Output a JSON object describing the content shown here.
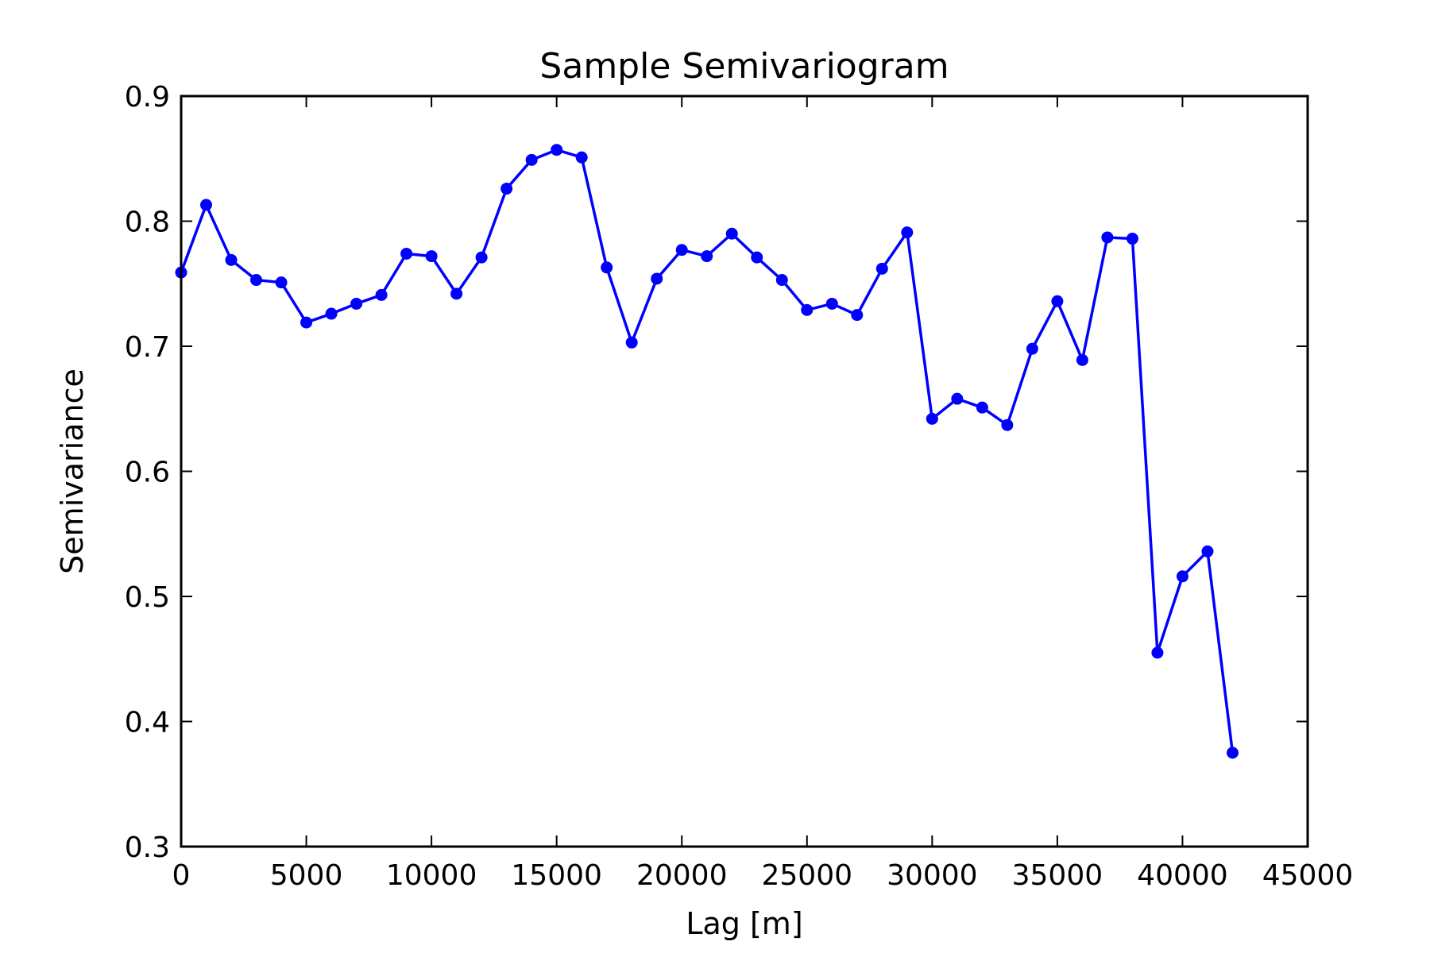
{
  "chart_data": {
    "type": "line",
    "title": "Sample Semivariogram",
    "xlabel": "Lag [m]",
    "ylabel": "Semivariance",
    "xlim": [
      0,
      45000
    ],
    "ylim": [
      0.3,
      0.9
    ],
    "x_ticks": [
      0,
      5000,
      10000,
      15000,
      20000,
      25000,
      30000,
      35000,
      40000,
      45000
    ],
    "x_tick_labels": [
      "0",
      "5000",
      "10000",
      "15000",
      "20000",
      "25000",
      "30000",
      "35000",
      "40000",
      "45000"
    ],
    "y_ticks": [
      0.3,
      0.4,
      0.5,
      0.6,
      0.7,
      0.8,
      0.9
    ],
    "y_tick_labels": [
      "0.3",
      "0.4",
      "0.5",
      "0.6",
      "0.7",
      "0.8",
      "0.9"
    ],
    "grid": false,
    "series": [
      {
        "color": "#0000ff",
        "marker": "circle",
        "x": [
          0,
          1000,
          2000,
          3000,
          4000,
          5000,
          6000,
          7000,
          8000,
          9000,
          10000,
          11000,
          12000,
          13000,
          14000,
          15000,
          16000,
          17000,
          18000,
          19000,
          20000,
          21000,
          22000,
          23000,
          24000,
          25000,
          26000,
          27000,
          28000,
          29000,
          30000,
          31000,
          32000,
          33000,
          34000,
          35000,
          36000,
          37000,
          38000,
          39000,
          40000,
          41000,
          42000
        ],
        "y": [
          0.759,
          0.813,
          0.769,
          0.753,
          0.751,
          0.719,
          0.726,
          0.734,
          0.741,
          0.774,
          0.772,
          0.742,
          0.771,
          0.826,
          0.849,
          0.857,
          0.851,
          0.763,
          0.703,
          0.754,
          0.777,
          0.772,
          0.79,
          0.771,
          0.753,
          0.729,
          0.734,
          0.725,
          0.762,
          0.791,
          0.642,
          0.658,
          0.651,
          0.637,
          0.698,
          0.736,
          0.689,
          0.787,
          0.786,
          0.455,
          0.516,
          0.536,
          0.375
        ]
      }
    ]
  }
}
